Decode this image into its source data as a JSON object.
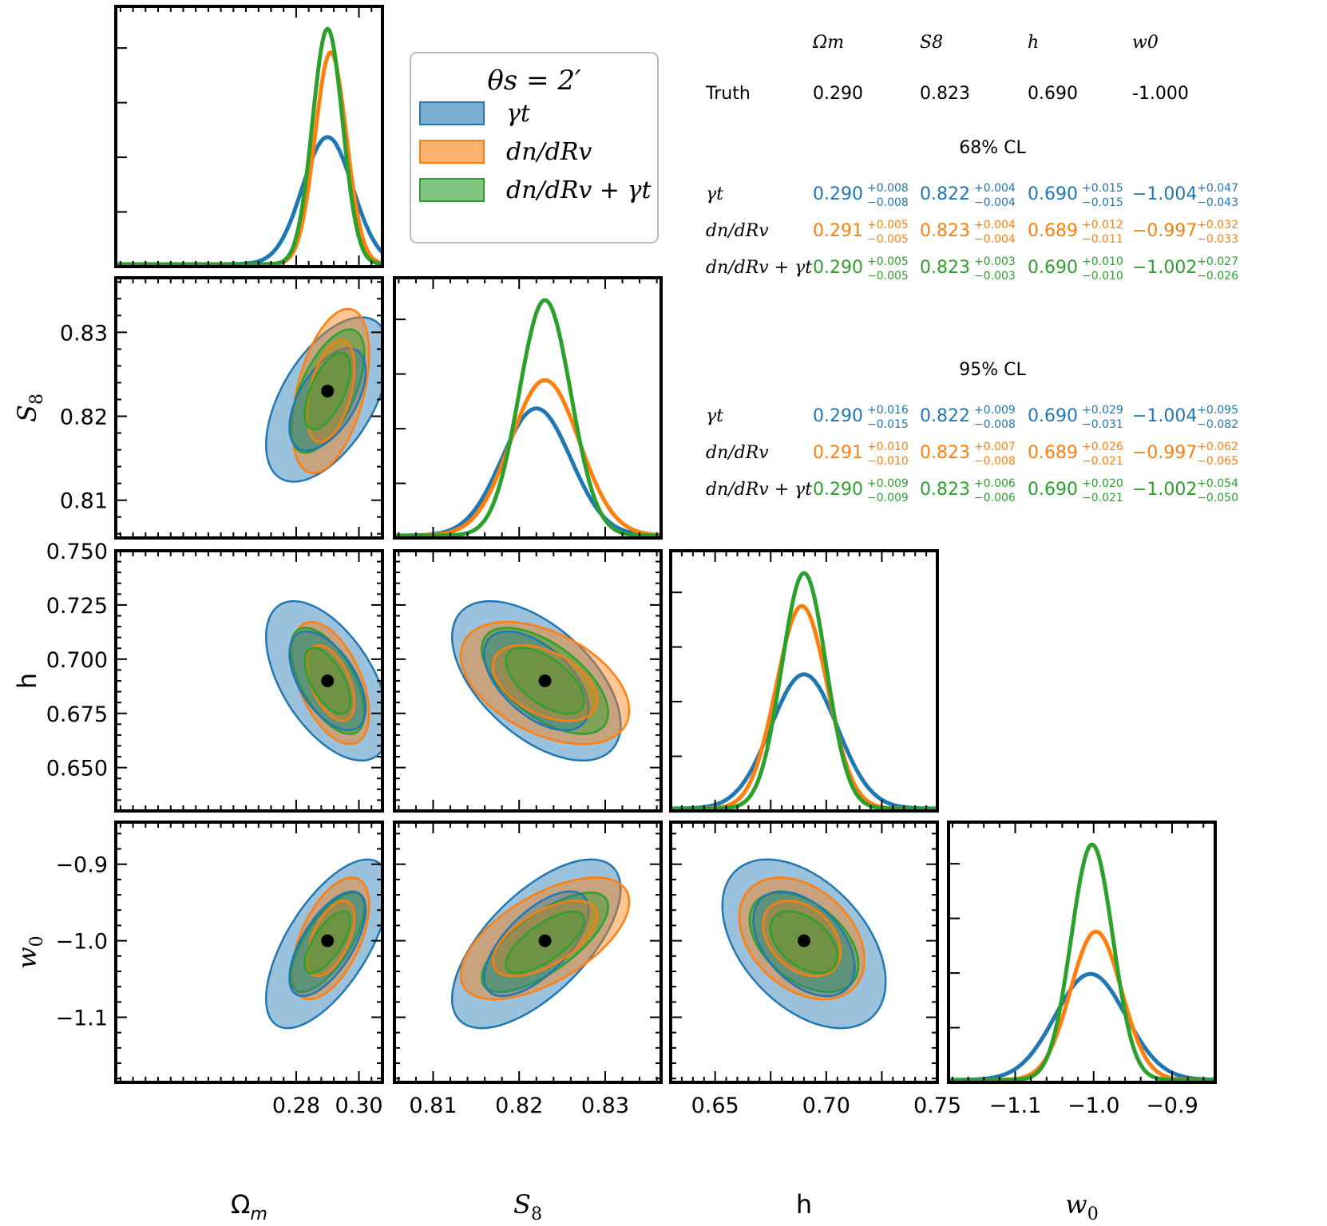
{
  "colors": {
    "gamma_t": "#1f77b4",
    "dn_dRv": "#ff7f0e",
    "combined": "#2ca02c"
  },
  "chart_data": {
    "type": "corner",
    "parameters": [
      {
        "key": "om",
        "label": "Ω",
        "sub": "m",
        "italic": false,
        "range": [
          0.2225,
          0.3075
        ],
        "ticks": [
          0.28,
          0.3
        ],
        "tick_labels": [
          "0.28",
          "0.30"
        ],
        "truth": 0.29
      },
      {
        "key": "s8",
        "label": "S",
        "sub": "8",
        "italic": true,
        "range": [
          0.8055,
          0.8365
        ],
        "ticks": [
          0.81,
          0.82,
          0.83
        ],
        "tick_labels": [
          "0.81",
          "0.82",
          "0.83"
        ],
        "truth": 0.823
      },
      {
        "key": "h",
        "label": "h",
        "sub": "",
        "italic": false,
        "range": [
          0.63,
          0.75
        ],
        "ticks": [
          0.65,
          0.675,
          0.7,
          0.725,
          0.75
        ],
        "tick_labels": [
          "0.650",
          "0.675",
          "0.700",
          "0.725",
          "0.750"
        ],
        "xtick_labels": [
          "0.65",
          "",
          "0.70",
          "",
          "0.75"
        ],
        "truth": 0.69
      },
      {
        "key": "w0",
        "label": "w",
        "sub": "0",
        "italic": true,
        "range": [
          -1.185,
          -0.845
        ],
        "ticks": [
          -1.1,
          -1.0,
          -0.9
        ],
        "tick_labels": [
          "−1.1",
          "−1.0",
          "−0.9"
        ],
        "truth": -1.0
      }
    ],
    "series": [
      {
        "name": "γt",
        "color_key": "gamma_t",
        "mean": [
          0.29,
          0.822,
          0.69,
          -1.004
        ],
        "sigma": [
          0.008,
          0.004,
          0.015,
          0.045
        ],
        "peak": [
          0.54,
          0.54,
          0.57,
          0.45
        ],
        "corr": [
          [
            1,
            0.55,
            -0.55,
            0.65
          ],
          [
            0.55,
            1,
            -0.55,
            0.65
          ],
          [
            -0.55,
            -0.55,
            1,
            -0.45
          ],
          [
            0.65,
            0.65,
            -0.45,
            1
          ]
        ]
      },
      {
        "name": "dn/dRv",
        "color_key": "dn_dRv",
        "mean": [
          0.291,
          0.823,
          0.689,
          -0.997
        ],
        "sigma": [
          0.005,
          0.004,
          0.0115,
          0.0325
        ],
        "peak": [
          0.9,
          0.66,
          0.86,
          0.63
        ],
        "corr": [
          [
            1,
            0.45,
            -0.5,
            0.55
          ],
          [
            0.45,
            1,
            -0.45,
            0.6
          ],
          [
            -0.5,
            -0.45,
            1,
            -0.35
          ],
          [
            0.55,
            0.6,
            -0.35,
            1
          ]
        ]
      },
      {
        "name": "dn/dRv+γt",
        "color_key": "combined",
        "mean": [
          0.29,
          0.823,
          0.69,
          -1.002
        ],
        "sigma": [
          0.0048,
          0.003,
          0.01,
          0.0265
        ],
        "peak": [
          1.0,
          1.0,
          1.0,
          1.0
        ],
        "corr": [
          [
            1,
            0.6,
            -0.6,
            0.7
          ],
          [
            0.6,
            1,
            -0.6,
            0.72
          ],
          [
            -0.6,
            -0.6,
            1,
            -0.45
          ],
          [
            0.7,
            0.72,
            -0.45,
            1
          ]
        ]
      }
    ],
    "legend": {
      "title": "θs = 2′",
      "entries": [
        {
          "label": "γt",
          "color_key": "gamma_t"
        },
        {
          "label": "dn/dRv",
          "color_key": "dn_dRv"
        },
        {
          "label": "dn/dRv + γt",
          "color_key": "combined"
        }
      ]
    },
    "table": {
      "header": [
        "Ωm",
        "S8",
        "h",
        "w0"
      ],
      "truth_label": "Truth",
      "truth": [
        "0.290",
        "0.823",
        "0.690",
        "-1.000"
      ],
      "cl68_title": "68% CL",
      "cl95_title": "95% CL",
      "rows68": [
        {
          "label": "γt",
          "color_key": "gamma_t",
          "cells": [
            [
              "0.290",
              "+0.008",
              "−0.008"
            ],
            [
              "0.822",
              "+0.004",
              "−0.004"
            ],
            [
              "0.690",
              "+0.015",
              "−0.015"
            ],
            [
              "−1.004",
              "+0.047",
              "−0.043"
            ]
          ]
        },
        {
          "label": "dn/dRv",
          "color_key": "dn_dRv",
          "cells": [
            [
              "0.291",
              "+0.005",
              "−0.005"
            ],
            [
              "0.823",
              "+0.004",
              "−0.004"
            ],
            [
              "0.689",
              "+0.012",
              "−0.011"
            ],
            [
              "−0.997",
              "+0.032",
              "−0.033"
            ]
          ]
        },
        {
          "label": "dn/dRv + γt",
          "color_key": "combined",
          "cells": [
            [
              "0.290",
              "+0.005",
              "−0.005"
            ],
            [
              "0.823",
              "+0.003",
              "−0.003"
            ],
            [
              "0.690",
              "+0.010",
              "−0.010"
            ],
            [
              "−1.002",
              "+0.027",
              "−0.026"
            ]
          ]
        }
      ],
      "rows95": [
        {
          "label": "γt",
          "color_key": "gamma_t",
          "cells": [
            [
              "0.290",
              "+0.016",
              "−0.015"
            ],
            [
              "0.822",
              "+0.009",
              "−0.008"
            ],
            [
              "0.690",
              "+0.029",
              "−0.031"
            ],
            [
              "−1.004",
              "+0.095",
              "−0.082"
            ]
          ]
        },
        {
          "label": "dn/dRv",
          "color_key": "dn_dRv",
          "cells": [
            [
              "0.291",
              "+0.010",
              "−0.010"
            ],
            [
              "0.823",
              "+0.007",
              "−0.008"
            ],
            [
              "0.689",
              "+0.026",
              "−0.021"
            ],
            [
              "−0.997",
              "+0.062",
              "−0.065"
            ]
          ]
        },
        {
          "label": "dn/dRv + γt",
          "color_key": "combined",
          "cells": [
            [
              "0.290",
              "+0.009",
              "−0.009"
            ],
            [
              "0.823",
              "+0.006",
              "−0.006"
            ],
            [
              "0.690",
              "+0.020",
              "−0.021"
            ],
            [
              "−1.002",
              "+0.054",
              "−0.050"
            ]
          ]
        }
      ]
    }
  }
}
